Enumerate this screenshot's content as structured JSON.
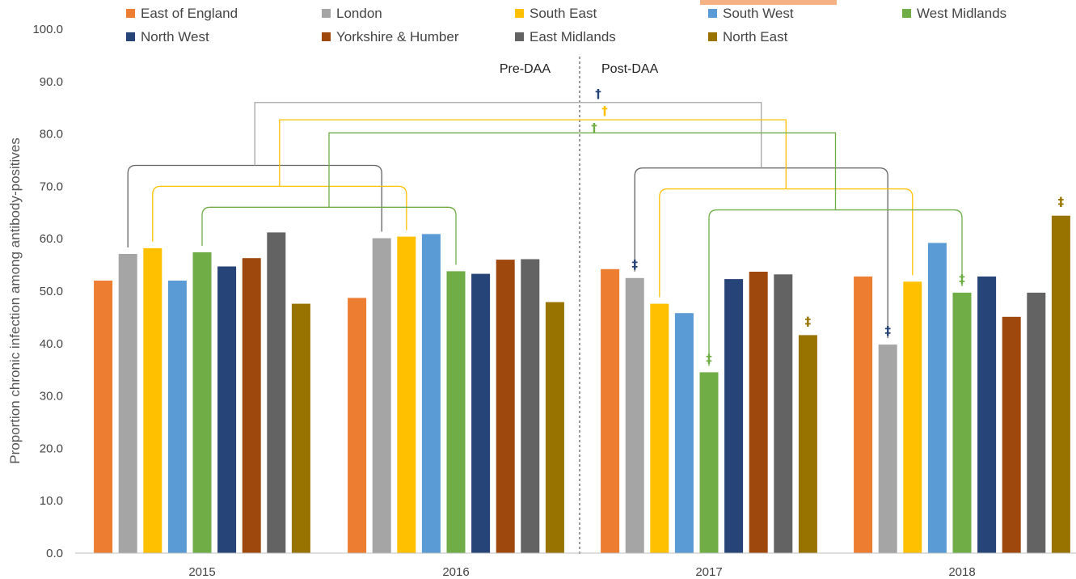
{
  "chart_data": {
    "type": "bar",
    "title": "",
    "xlabel": "",
    "ylabel": "Proportion chronic infection among antibody-positives",
    "ylim": [
      0,
      100
    ],
    "yticks": [
      "0.0",
      "10.0",
      "20.0",
      "30.0",
      "40.0",
      "50.0",
      "60.0",
      "70.0",
      "80.0",
      "90.0",
      "100.0"
    ],
    "ytick_values": [
      0,
      10,
      20,
      30,
      40,
      50,
      60,
      70,
      80,
      90,
      100
    ],
    "categories": [
      "2015",
      "2016",
      "2017",
      "2018"
    ],
    "legend_position": "top",
    "grid": false,
    "series": [
      {
        "name": "East of England",
        "color": "#ED7D31",
        "values": [
          52.0,
          48.7,
          54.2,
          52.8
        ]
      },
      {
        "name": "London",
        "color": "#A5A5A5",
        "values": [
          57.1,
          60.1,
          52.5,
          39.8
        ]
      },
      {
        "name": "South East",
        "color": "#FFC000",
        "values": [
          58.2,
          60.4,
          47.6,
          51.8
        ]
      },
      {
        "name": "South West",
        "color": "#5B9BD5",
        "values": [
          52.0,
          60.9,
          45.8,
          59.2
        ]
      },
      {
        "name": "West Midlands",
        "color": "#70AD47",
        "values": [
          57.4,
          53.8,
          34.5,
          49.7
        ]
      },
      {
        "name": "North West",
        "color": "#264478",
        "values": [
          54.7,
          53.3,
          52.3,
          52.8
        ]
      },
      {
        "name": "Yorkshire & Humber",
        "color": "#9E480E",
        "values": [
          56.3,
          56.0,
          53.7,
          45.1
        ]
      },
      {
        "name": "East Midlands",
        "color": "#636363",
        "values": [
          61.2,
          56.1,
          53.2,
          49.7
        ]
      },
      {
        "name": "North East",
        "color": "#997300",
        "values": [
          47.6,
          47.9,
          41.6,
          64.4
        ]
      }
    ],
    "period_labels": {
      "pre": "Pre-DAA",
      "post": "Post-DAA"
    },
    "significance_marks": [
      {
        "symbol": "‡",
        "series": 1,
        "category": 2,
        "color": "#264478"
      },
      {
        "symbol": "‡",
        "series": 4,
        "category": 2,
        "color": "#70AD47"
      },
      {
        "symbol": "‡",
        "series": 8,
        "category": 2,
        "color": "#997300"
      },
      {
        "symbol": "‡",
        "series": 1,
        "category": 3,
        "color": "#264478"
      },
      {
        "symbol": "‡",
        "series": 4,
        "category": 3,
        "color": "#70AD47"
      },
      {
        "symbol": "‡",
        "series": 8,
        "category": 3,
        "color": "#997300"
      }
    ],
    "period_marks": [
      {
        "symbol": "†",
        "color": "#264478"
      },
      {
        "symbol": "†",
        "color": "#FFC000"
      },
      {
        "symbol": "†",
        "color": "#70AD47"
      }
    ],
    "brackets": [
      {
        "pair": [
          [
            1,
            0
          ],
          [
            1,
            1
          ]
        ],
        "color": "#636363"
      },
      {
        "pair": [
          [
            2,
            0
          ],
          [
            2,
            1
          ]
        ],
        "color": "#FFC000"
      },
      {
        "pair": [
          [
            4,
            0
          ],
          [
            4,
            1
          ]
        ],
        "color": "#70AD47"
      },
      {
        "pair": [
          [
            1,
            2
          ],
          [
            1,
            3
          ]
        ],
        "color": "#636363"
      },
      {
        "pair": [
          [
            2,
            2
          ],
          [
            2,
            3
          ]
        ],
        "color": "#FFC000"
      },
      {
        "pair": [
          [
            4,
            2
          ],
          [
            4,
            3
          ]
        ],
        "color": "#70AD47"
      }
    ],
    "top_brackets": [
      {
        "pair": [
          0,
          3
        ],
        "color": "#A5A5A5"
      },
      {
        "pair": [
          1,
          4
        ],
        "color": "#FFC000"
      },
      {
        "pair": [
          2,
          5
        ],
        "color": "#70AD47"
      }
    ]
  }
}
